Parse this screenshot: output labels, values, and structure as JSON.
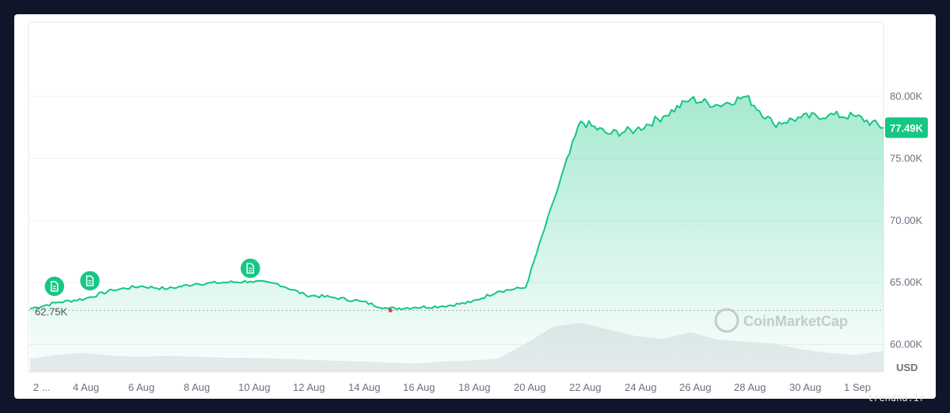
{
  "chart_data": {
    "type": "area",
    "title": "",
    "xlabel": "",
    "ylabel": "",
    "y_unit": "USD",
    "ylim": [
      57800,
      86000
    ],
    "x_tick_labels": [
      "2 ...",
      "4 Aug",
      "6 Aug",
      "8 Aug",
      "10 Aug",
      "12 Aug",
      "14 Aug",
      "16 Aug",
      "18 Aug",
      "20 Aug",
      "22 Aug",
      "24 Aug",
      "26 Aug",
      "28 Aug",
      "30 Aug",
      "1 Sep"
    ],
    "y_tick_labels": [
      "60.00K",
      "65.00K",
      "70.00K",
      "75.00K",
      "80.00K"
    ],
    "y_tick_values": [
      60000,
      65000,
      70000,
      75000,
      80000
    ],
    "series": [
      {
        "x": [
          "2 Aug",
          "3 Aug",
          "4 Aug",
          "5 Aug",
          "6 Aug",
          "7 Aug",
          "8 Aug",
          "9 Aug",
          "10 Aug",
          "11 Aug",
          "12 Aug",
          "13 Aug",
          "14 Aug",
          "15 Aug",
          "16 Aug",
          "17 Aug",
          "18 Aug",
          "19 Aug",
          "20 Aug",
          "21 Aug",
          "22 Aug",
          "23 Aug",
          "24 Aug",
          "25 Aug",
          "26 Aug",
          "27 Aug",
          "28 Aug",
          "29 Aug",
          "30 Aug",
          "31 Aug",
          "1 Sep",
          "2 Sep"
        ],
        "values": [
          62900,
          63400,
          63700,
          64400,
          64700,
          64500,
          64900,
          65000,
          65100,
          64900,
          64000,
          63800,
          63500,
          62900,
          63000,
          63100,
          63400,
          64300,
          64600,
          71500,
          78000,
          77000,
          77300,
          78400,
          79800,
          79300,
          80000,
          77800,
          78300,
          78500,
          78400,
          77490
        ]
      }
    ],
    "volume": [
      14,
      18,
      20,
      17,
      16,
      17,
      16,
      15,
      15,
      14,
      13,
      12,
      11,
      10,
      9,
      11,
      12,
      14,
      30,
      48,
      52,
      45,
      38,
      35,
      42,
      34,
      32,
      30,
      24,
      20,
      18,
      22
    ],
    "min_marker": {
      "label": "62.75K",
      "value": 62750
    },
    "last_price": {
      "label": "77.49K",
      "value": 77490
    },
    "news_markers": [
      {
        "x": "3 Aug",
        "value": 63550,
        "icon": "document-icon"
      },
      {
        "x": "4 Aug",
        "value": 64000,
        "icon": "document-icon"
      },
      {
        "x": "10 Aug",
        "value": 65000,
        "icon": "document-icon"
      }
    ],
    "watermark": "CoinMarketCap",
    "grid": true,
    "colors": {
      "line": "#16c784",
      "area_top": "#16c784",
      "badge": "#16c784",
      "volume": "#e5e7eb",
      "min_dot": "#ea3943"
    }
  },
  "credit": "trendna.ir"
}
